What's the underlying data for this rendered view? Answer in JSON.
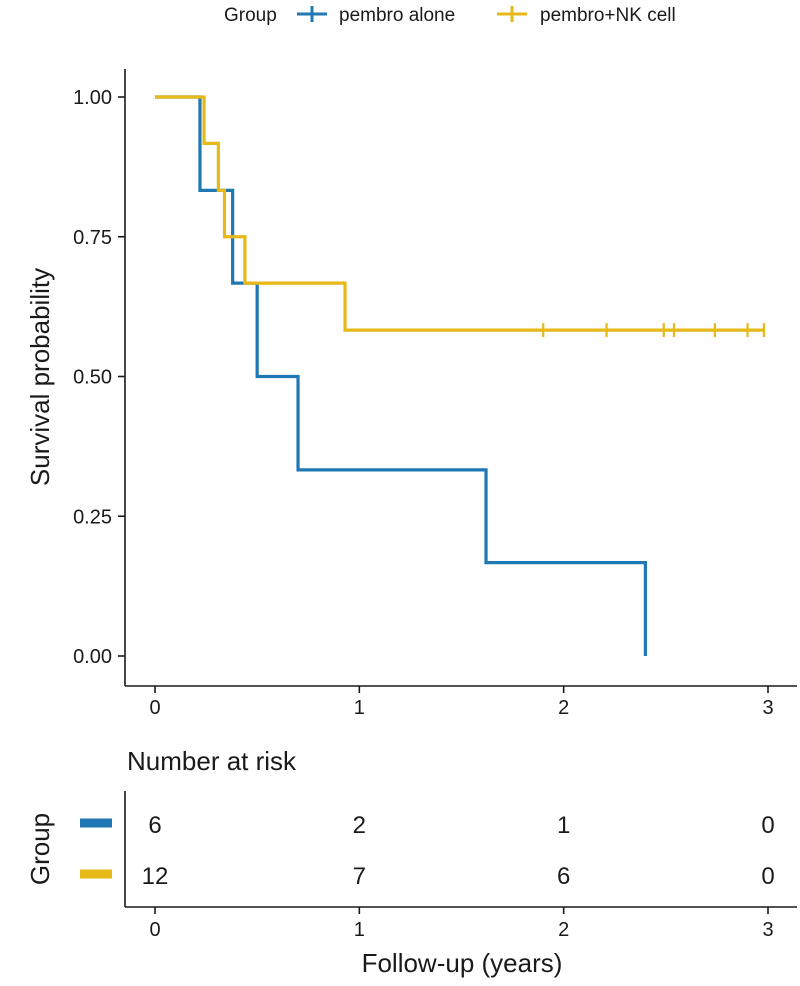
{
  "chart_data": {
    "type": "line",
    "subtype": "kaplan-meier",
    "legend": {
      "title": "Group",
      "position": "top",
      "entries": [
        "pembro alone",
        "pembro+NK cell"
      ]
    },
    "ylabel": "Survival probability",
    "xlabel": "Follow-up (years)",
    "xlim": [
      0,
      3
    ],
    "ylim": [
      0,
      1
    ],
    "x_ticks": [
      0,
      1,
      2,
      3
    ],
    "x_tick_labels": [
      "0",
      "1",
      "2",
      "3"
    ],
    "y_ticks": [
      0,
      0.25,
      0.5,
      0.75,
      1
    ],
    "y_tick_labels": [
      "0.00",
      "0.25",
      "0.50",
      "0.75",
      "1.00"
    ],
    "grid": false,
    "series": [
      {
        "name": "pembro alone",
        "color": "#1f77b4",
        "steps": [
          [
            0,
            1.0
          ],
          [
            0.22,
            0.833
          ],
          [
            0.38,
            0.667
          ],
          [
            0.5,
            0.5
          ],
          [
            0.7,
            0.333
          ],
          [
            1.62,
            0.167
          ],
          [
            2.4,
            0.0
          ]
        ],
        "end_x": 2.4,
        "censor_times": []
      },
      {
        "name": "pembro+NK cell",
        "color": "#e6b919",
        "steps": [
          [
            0,
            1.0
          ],
          [
            0.24,
            0.917
          ],
          [
            0.31,
            0.833
          ],
          [
            0.34,
            0.75
          ],
          [
            0.44,
            0.667
          ],
          [
            0.93,
            0.583
          ]
        ],
        "end_x": 2.98,
        "censor_times": [
          1.9,
          2.21,
          2.49,
          2.54,
          2.74,
          2.9,
          2.98
        ]
      }
    ],
    "risk_table": {
      "title": "Number at risk",
      "ylabel": "Group",
      "xlabel": "Follow-up (years)",
      "times": [
        0,
        1,
        2,
        3
      ],
      "rows": [
        {
          "name": "pembro alone",
          "color": "#1f77b4",
          "values": [
            "6",
            "2",
            "1",
            "0"
          ]
        },
        {
          "name": "pembro+NK cell",
          "color": "#e6b919",
          "values": [
            "12",
            "7",
            "6",
            "0"
          ]
        }
      ]
    }
  }
}
